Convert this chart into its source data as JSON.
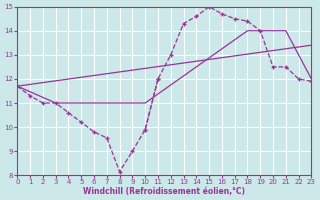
{
  "xlabel": "Windchill (Refroidissement éolien,°C)",
  "bg_color": "#cce8e8",
  "grid_color": "#ffffff",
  "line_color": "#993399",
  "xlim": [
    0,
    23
  ],
  "ylim": [
    8,
    15
  ],
  "xticks": [
    0,
    1,
    2,
    3,
    4,
    5,
    6,
    7,
    8,
    9,
    10,
    11,
    12,
    13,
    14,
    15,
    16,
    17,
    18,
    19,
    20,
    21,
    22,
    23
  ],
  "yticks": [
    8,
    9,
    10,
    11,
    12,
    13,
    14,
    15
  ],
  "series": [
    {
      "x": [
        0,
        1,
        2,
        3,
        4,
        5,
        6,
        7,
        8,
        9,
        10,
        11
      ],
      "y": [
        11.7,
        11.3,
        11.0,
        11.0,
        10.6,
        10.2,
        9.8,
        9.55,
        8.15,
        9.0,
        9.9,
        12.0
      ],
      "style": "dashed_marker"
    },
    {
      "x": [
        10,
        11,
        12,
        13,
        14,
        15,
        16,
        17,
        18,
        19,
        20,
        21,
        22,
        23
      ],
      "y": [
        9.9,
        12.0,
        13.0,
        14.3,
        14.6,
        15.0,
        14.7,
        14.5,
        14.4,
        14.0,
        12.5,
        12.5,
        12.0,
        11.9
      ],
      "style": "dashed_marker"
    },
    {
      "x": [
        0,
        3,
        10,
        18,
        21,
        23
      ],
      "y": [
        11.7,
        11.0,
        11.0,
        14.0,
        14.0,
        12.0
      ],
      "style": "solid"
    },
    {
      "comment": "diagonal line from (0,11.7) to (23,13.4)",
      "x": [
        0,
        23
      ],
      "y": [
        11.7,
        13.4
      ],
      "style": "solid"
    }
  ]
}
